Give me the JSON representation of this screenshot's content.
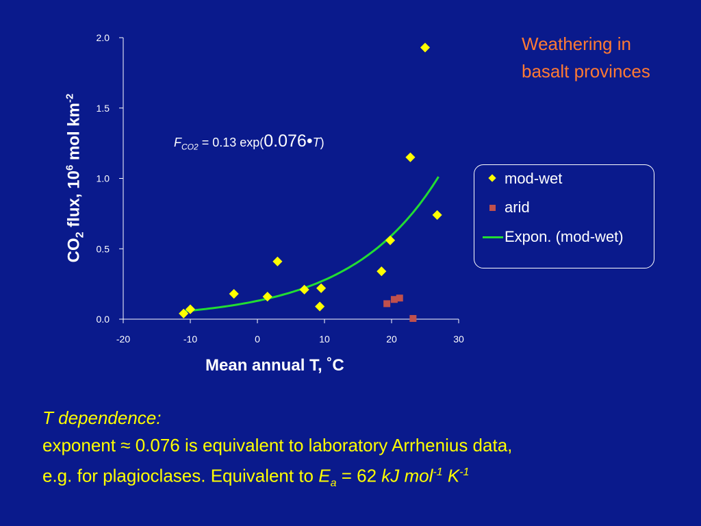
{
  "corner_title": {
    "line1": "Weathering in",
    "line2": "basalt provinces"
  },
  "formula": {
    "f": "F",
    "sub": "CO2",
    "eq": " = 0.13 exp(",
    "coef": "0.076",
    "dot": "•",
    "var": "T",
    "close": ")"
  },
  "note": {
    "line1": "T dependence:",
    "line2": "exponent ≈ 0.076 is equivalent to laboratory Arrhenius data,",
    "line3_a": "e.g. for plagioclases.  Equivalent to ",
    "ea": "E",
    "ea_sub": "a",
    "line3_b": " =  62 ",
    "unit1": "kJ mol",
    "unit1_sup": "-1",
    "unit2": " K",
    "unit2_sup": "-1"
  },
  "chart_data": {
    "type": "scatter",
    "xlabel_main": "Mean annual T, ˚C",
    "ylabel": {
      "a": "CO",
      "sub": "2",
      "b": " flux, 10",
      "sup6": "6",
      "c": " mol km",
      "sup": "-2"
    },
    "xlim": [
      -20,
      30
    ],
    "ylim": [
      0,
      2.0
    ],
    "x_ticks": [
      "-20",
      "-10",
      "0",
      "10",
      "20",
      "30"
    ],
    "y_ticks": [
      "0.0",
      "0.5",
      "1.0",
      "1.5",
      "2.0"
    ],
    "series": [
      {
        "name": "mod-wet",
        "marker": "diamond",
        "color": "#ffff00",
        "points": [
          [
            -11,
            0.04
          ],
          [
            -10,
            0.07
          ],
          [
            -3.5,
            0.18
          ],
          [
            1.5,
            0.16
          ],
          [
            3,
            0.41
          ],
          [
            7,
            0.21
          ],
          [
            9.5,
            0.22
          ],
          [
            9.3,
            0.09
          ],
          [
            18.5,
            0.34
          ],
          [
            19.8,
            0.56
          ],
          [
            22.8,
            1.15
          ],
          [
            25,
            1.93
          ],
          [
            26.8,
            0.74
          ]
        ]
      },
      {
        "name": "arid",
        "marker": "square",
        "color": "#c0504d",
        "points": [
          [
            19.3,
            0.11
          ],
          [
            20.4,
            0.14
          ],
          [
            21.2,
            0.15
          ],
          [
            23.2,
            0.005
          ]
        ]
      },
      {
        "name": "Expon. (mod-wet)",
        "type": "line",
        "color": "#22dd33",
        "x_range": [
          -11,
          27
        ]
      }
    ],
    "legend": {
      "items": [
        "mod-wet",
        "arid",
        "Expon. (mod-wet)"
      ],
      "placement": "right"
    },
    "grid": false
  }
}
